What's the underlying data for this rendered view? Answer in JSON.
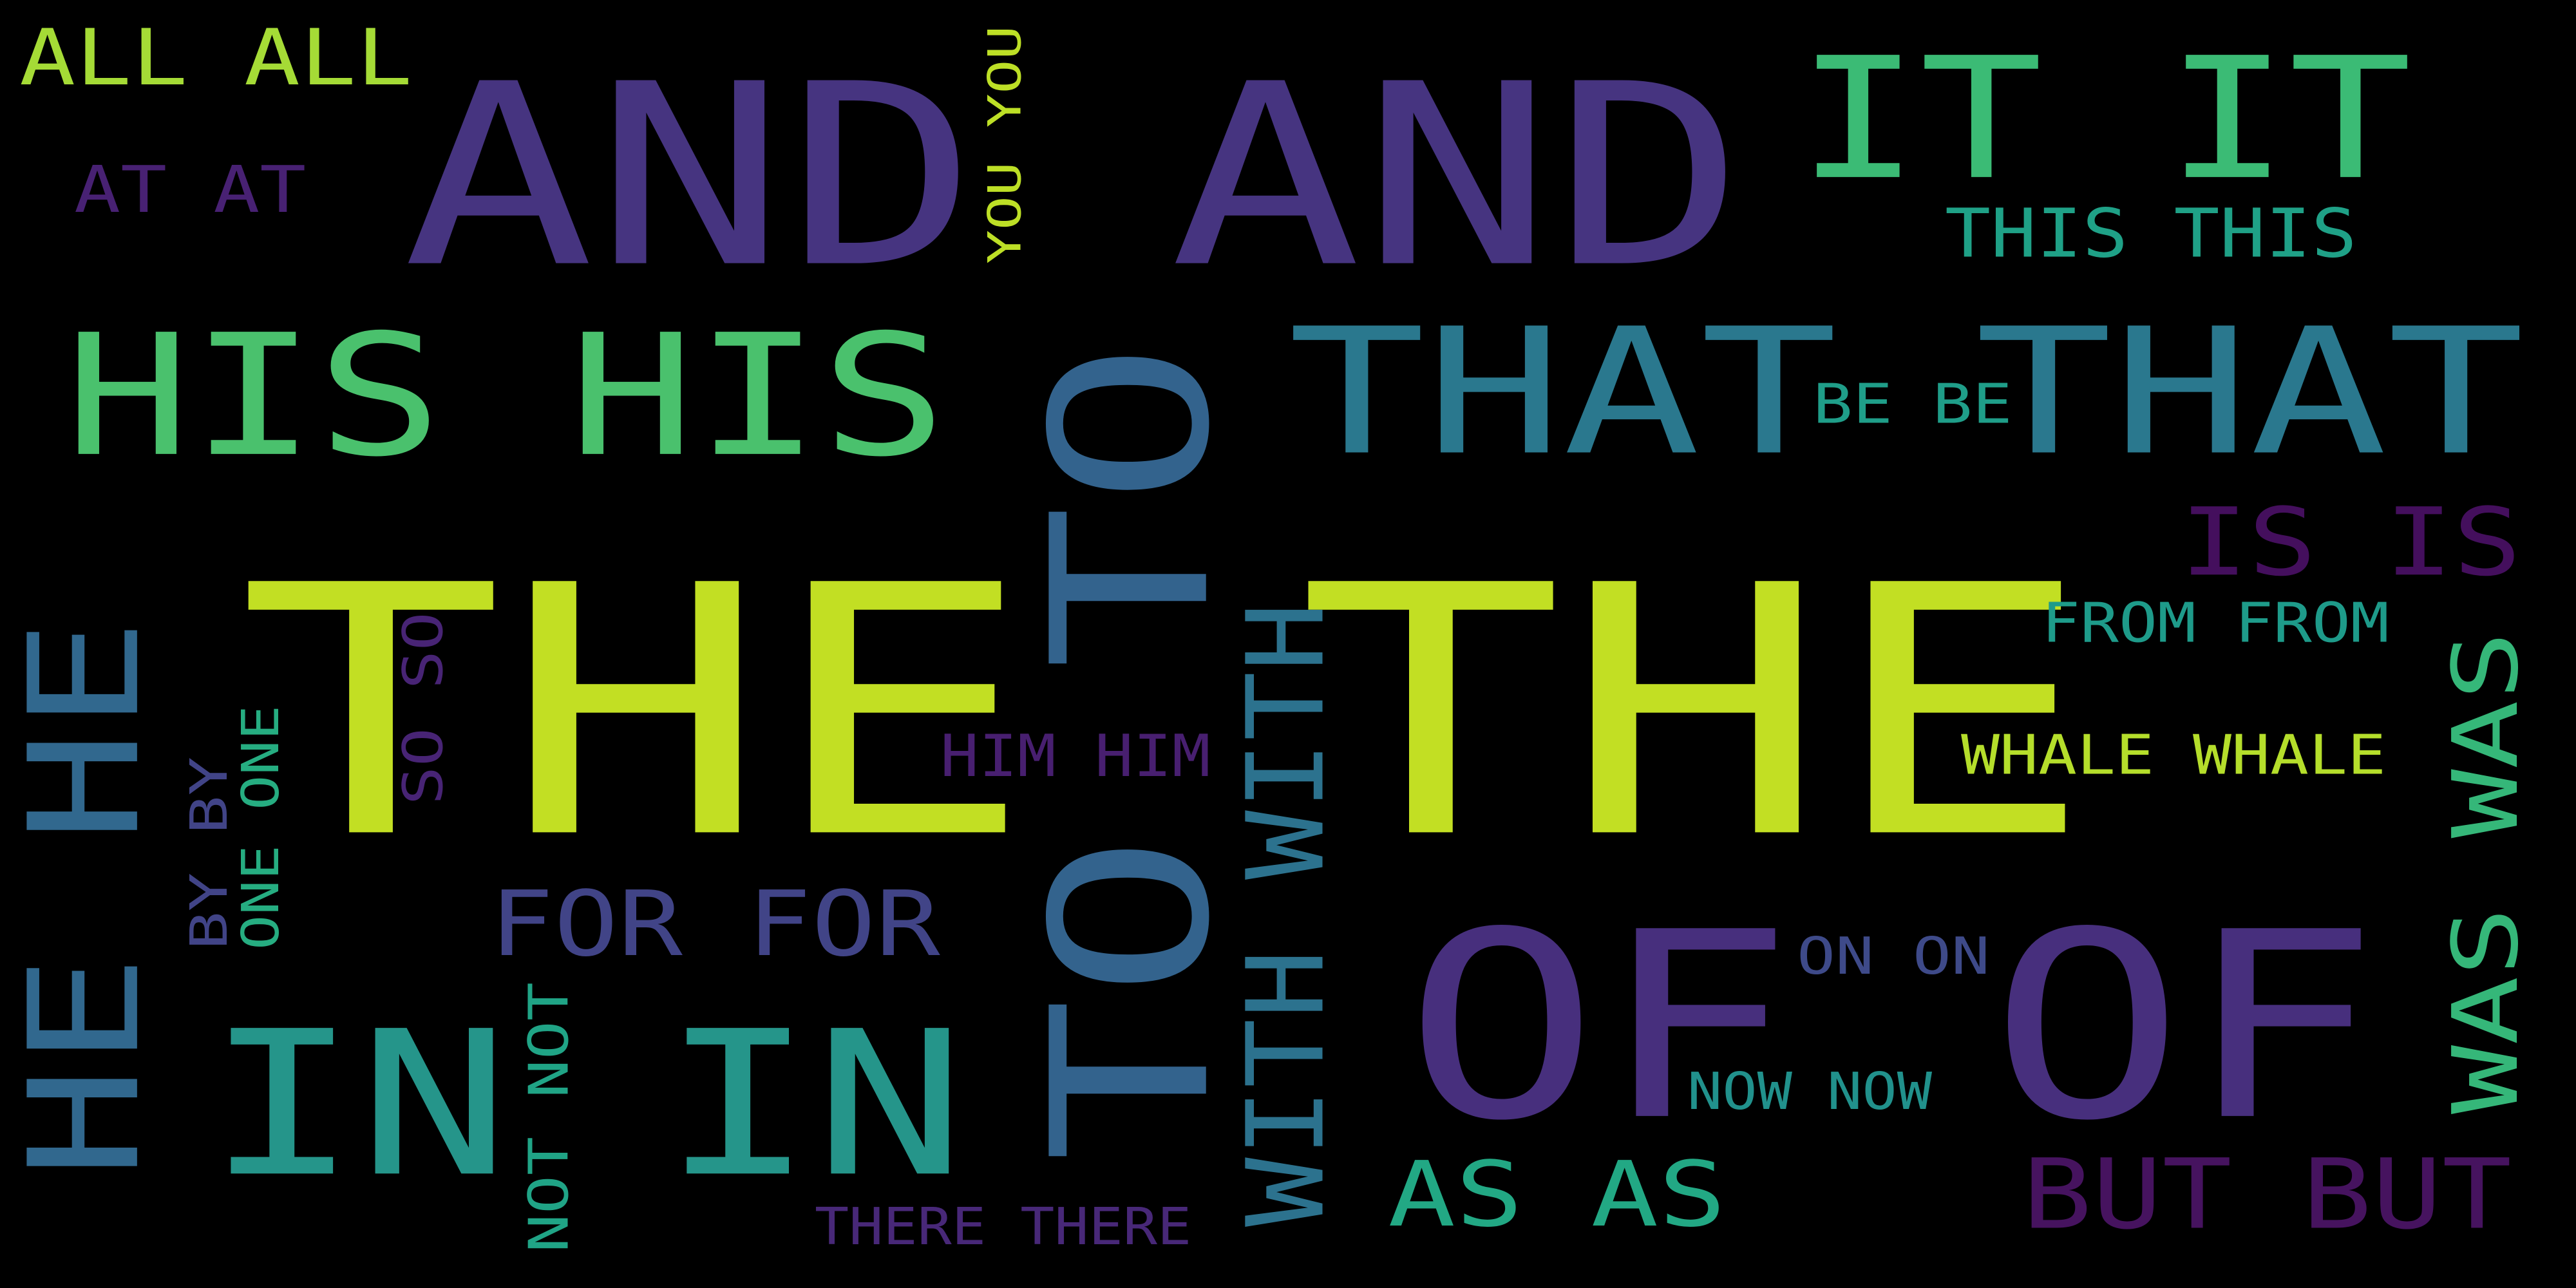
{
  "word_cloud": {
    "background": "#000000",
    "words": [
      {
        "id": "the",
        "text": "THE THE",
        "color": "#c2df23",
        "vertical": false
      },
      {
        "id": "and",
        "text": "AND AND",
        "color": "#463480",
        "vertical": false
      },
      {
        "id": "of",
        "text": "OF OF",
        "color": "#472f7d",
        "vertical": false
      },
      {
        "id": "to",
        "text": "TO TO",
        "color": "#33638d",
        "vertical": true
      },
      {
        "id": "his",
        "text": "HIS HIS",
        "color": "#4ac16d",
        "vertical": false
      },
      {
        "id": "that",
        "text": "THAT THAT",
        "color": "#2a788e",
        "vertical": false
      },
      {
        "id": "in",
        "text": "IN IN",
        "color": "#25958a",
        "vertical": false
      },
      {
        "id": "it",
        "text": "IT IT",
        "color": "#3bbb75",
        "vertical": false
      },
      {
        "id": "he",
        "text": "HE HE",
        "color": "#31688e",
        "vertical": true
      },
      {
        "id": "with",
        "text": "WITH WITH",
        "color": "#2c728e",
        "vertical": true
      },
      {
        "id": "was",
        "text": "WAS WAS",
        "color": "#35b779",
        "vertical": true
      },
      {
        "id": "is",
        "text": "IS IS",
        "color": "#440f5d",
        "vertical": false
      },
      {
        "id": "but",
        "text": "BUT BUT",
        "color": "#46135f",
        "vertical": false
      },
      {
        "id": "for",
        "text": "FOR FOR",
        "color": "#414487",
        "vertical": false
      },
      {
        "id": "as",
        "text": "AS AS",
        "color": "#22a884",
        "vertical": false
      },
      {
        "id": "all",
        "text": "ALL ALL",
        "color": "#a5db36",
        "vertical": false
      },
      {
        "id": "this",
        "text": "THIS THIS",
        "color": "#1fa187",
        "vertical": false
      },
      {
        "id": "you",
        "text": "YOU YOU",
        "color": "#bddf26",
        "vertical": true
      },
      {
        "id": "at",
        "text": "AT AT",
        "color": "#482173",
        "vertical": false
      },
      {
        "id": "be",
        "text": "BE BE",
        "color": "#1f9e89",
        "vertical": false
      },
      {
        "id": "from",
        "text": "FROM FROM",
        "color": "#1e9b8a",
        "vertical": false
      },
      {
        "id": "whale",
        "text": "WHALE WHALE",
        "color": "#b5de2b",
        "vertical": false
      },
      {
        "id": "him",
        "text": "HIM HIM",
        "color": "#481f70",
        "vertical": false
      },
      {
        "id": "on",
        "text": "ON ON",
        "color": "#3e4a89",
        "vertical": false
      },
      {
        "id": "so",
        "text": "SO SO",
        "color": "#482475",
        "vertical": true
      },
      {
        "id": "by",
        "text": "BY BY",
        "color": "#414487",
        "vertical": true
      },
      {
        "id": "one",
        "text": "ONE ONE",
        "color": "#26ad81",
        "vertical": true
      },
      {
        "id": "not",
        "text": "NOT NOT",
        "color": "#20a486",
        "vertical": true
      },
      {
        "id": "now",
        "text": "NOW NOW",
        "color": "#21918c",
        "vertical": false
      },
      {
        "id": "there",
        "text": "THERE THERE",
        "color": "#482878",
        "vertical": false
      }
    ]
  }
}
